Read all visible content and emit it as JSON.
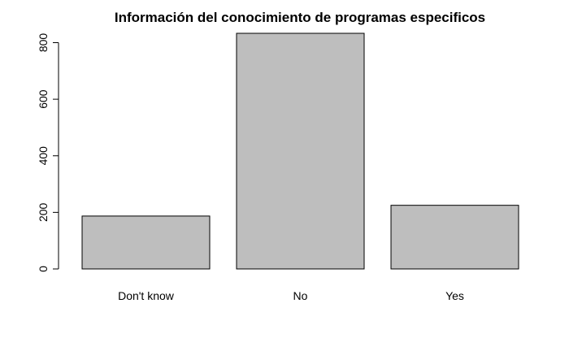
{
  "chart_data": {
    "type": "bar",
    "title": "Información del conocimiento de programas especificos",
    "xlabel": "",
    "ylabel": "",
    "categories": [
      "Don't know",
      "No",
      "Yes"
    ],
    "values": [
      187,
      833,
      225
    ],
    "ylim": [
      0,
      833
    ],
    "yticks": [
      0,
      200,
      400,
      600,
      800
    ],
    "grid": false,
    "bar_color": "#bebebe",
    "bar_border": "#000000"
  }
}
